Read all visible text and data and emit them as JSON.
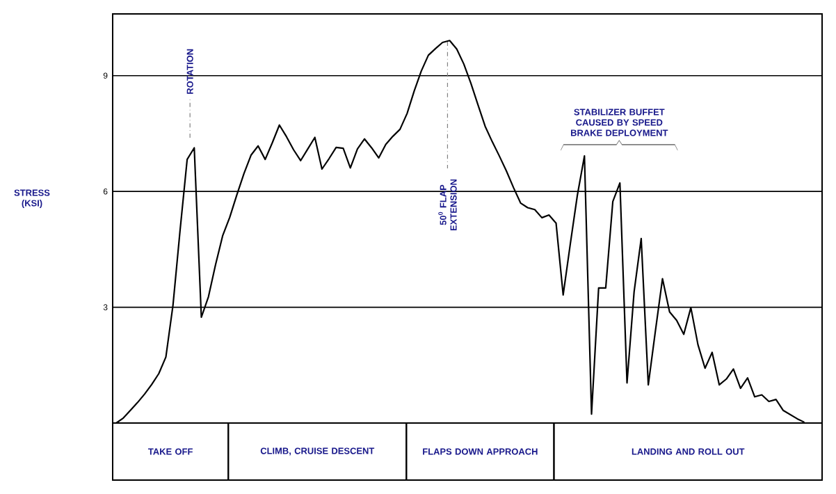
{
  "chart_data": {
    "type": "line",
    "categories": [
      null,
      null,
      null,
      null,
      null,
      null,
      null,
      null,
      null,
      null,
      null,
      null,
      null,
      null,
      null,
      null,
      null,
      null,
      null,
      null,
      null,
      null,
      null,
      null,
      null,
      null,
      null,
      null,
      null,
      null,
      null,
      null,
      null,
      null,
      null,
      null,
      null,
      null,
      null,
      null,
      null,
      null,
      null,
      null,
      null,
      null,
      null,
      null,
      null,
      null,
      null,
      null,
      null,
      null,
      null,
      null,
      null,
      null,
      null,
      null,
      null,
      null,
      null,
      null,
      null,
      null,
      null,
      null,
      null,
      null,
      null,
      null,
      null,
      null,
      null,
      null,
      null,
      null,
      null,
      null,
      null,
      null,
      null,
      null,
      null,
      null,
      null,
      null,
      null,
      null,
      null,
      null,
      null,
      null,
      null,
      null,
      null,
      null
    ],
    "series": [
      {
        "color": "#000000",
        "values": [
          0,
          0.13,
          0.33,
          0.53,
          0.75,
          1.0,
          1.28,
          1.71,
          3.05,
          4.99,
          6.83,
          7.13,
          2.74,
          3.27,
          4.1,
          4.85,
          5.33,
          5.91,
          6.46,
          6.94,
          7.18,
          6.83,
          7.26,
          7.72,
          7.42,
          7.08,
          6.8,
          7.1,
          7.4,
          6.58,
          6.85,
          7.14,
          7.12,
          6.61,
          7.1,
          7.36,
          7.13,
          6.87,
          7.22,
          7.43,
          7.61,
          8.02,
          8.6,
          9.12,
          9.53,
          9.7,
          9.86,
          9.91,
          9.69,
          9.3,
          8.8,
          8.24,
          7.69,
          7.29,
          6.92,
          6.53,
          6.1,
          5.7,
          5.58,
          5.53,
          5.32,
          5.39,
          5.18,
          3.32,
          4.63,
          5.9,
          6.92,
          0.23,
          3.5,
          3.5,
          5.74,
          6.22,
          1.04,
          3.4,
          4.78,
          0.99,
          2.38,
          3.74,
          2.88,
          2.66,
          2.3,
          2.99,
          2.03,
          1.42,
          1.83,
          0.99,
          1.14,
          1.4,
          0.9,
          1.17,
          0.68,
          0.73,
          0.56,
          0.61,
          0.33,
          0.22,
          0.11,
          0.02
        ]
      }
    ],
    "ylim": [
      0,
      10.6
    ],
    "yticks": [
      3,
      6,
      9
    ],
    "grid": "y",
    "tick_labels": "y",
    "marker": "none",
    "line_style": "solid",
    "annotations": [
      "ROTATION",
      "50$^{0}$ FLAP EXTENSION",
      "STABILIZER BUFFET CAUSED BY SPEED BRAKE DEPLOYMENT",
      "TAKE OFF",
      "CLIMB, CRUISE DESCENT",
      "FLAPS DOWN APPROACH",
      "LANDING AND ROLL OUT",
      "STRESS (KSI)"
    ]
  }
}
